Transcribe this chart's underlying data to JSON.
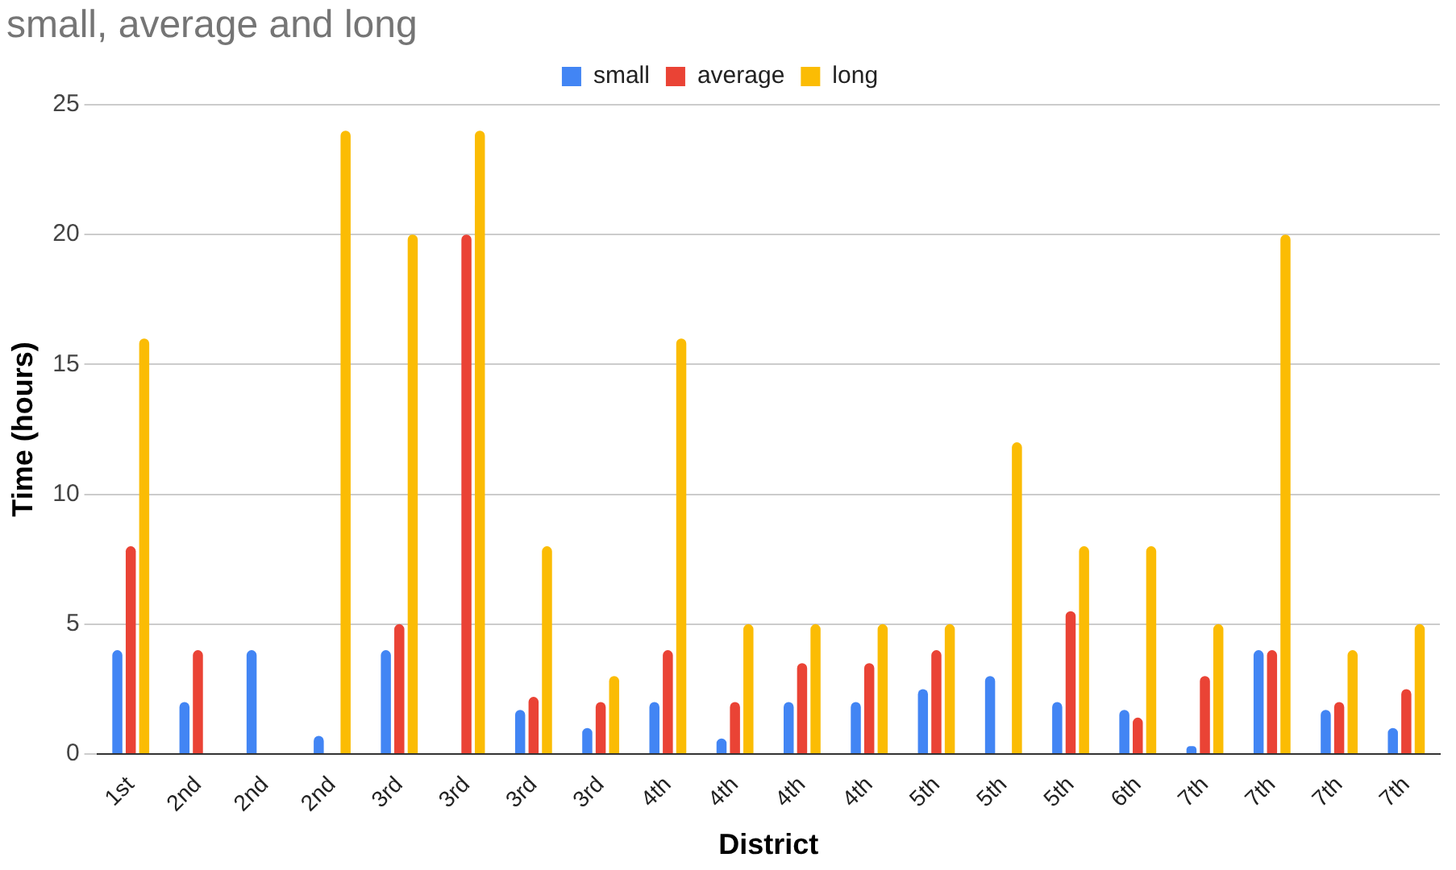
{
  "chart_data": {
    "type": "bar",
    "title": "small, average and long",
    "xlabel": "District",
    "ylabel": "Time (hours)",
    "categories": [
      "1st",
      "2nd",
      "2nd",
      "2nd",
      "3rd",
      "3rd",
      "3rd",
      "3rd",
      "4th",
      "4th",
      "4th",
      "4th",
      "5th",
      "5th",
      "5th",
      "6th",
      "7th",
      "7th",
      "7th",
      "7th"
    ],
    "series": [
      {
        "name": "small",
        "color": "#4285f4",
        "values": [
          4,
          2,
          4,
          0.7,
          4,
          null,
          1.7,
          1,
          2,
          0.6,
          2,
          2,
          2.5,
          3,
          2,
          1.7,
          0.3,
          4,
          1.7,
          1
        ]
      },
      {
        "name": "average",
        "color": "#ea4335",
        "values": [
          8,
          4,
          null,
          null,
          5,
          20,
          2.2,
          2,
          4,
          2,
          3.5,
          3.5,
          4,
          null,
          5.5,
          1.4,
          3,
          4,
          2,
          2.5
        ]
      },
      {
        "name": "long",
        "color": "#fbbc04",
        "values": [
          16,
          null,
          null,
          24,
          20,
          24,
          8,
          3,
          16,
          5,
          5,
          5,
          5,
          12,
          8,
          8,
          5,
          20,
          4,
          5
        ]
      }
    ],
    "ylim": [
      0,
      25
    ],
    "yticks": [
      0,
      5,
      10,
      15,
      20,
      25
    ],
    "grid": "y",
    "legend": "top"
  }
}
